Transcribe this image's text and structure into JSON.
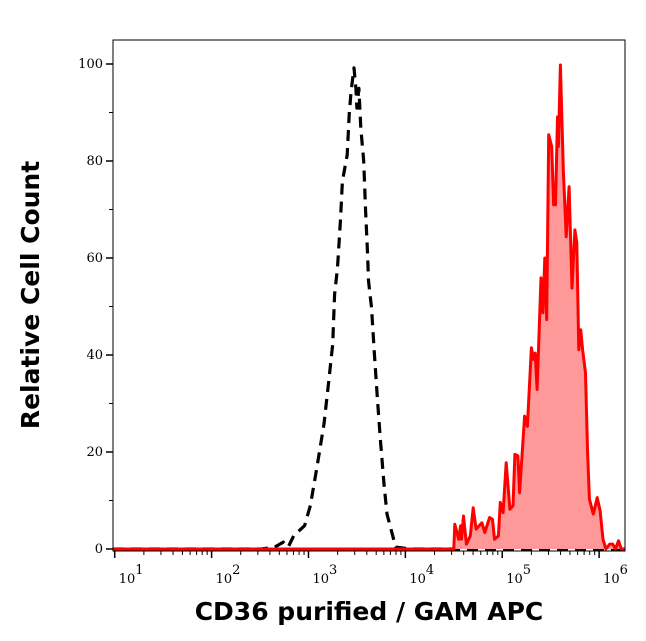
{
  "chart_data": {
    "type": "area",
    "title": "",
    "xlabel": "CD36 purified / GAM APC",
    "ylabel": "Relative Cell Count",
    "x_scale": "log",
    "xlim": [
      9.6,
      1850000
    ],
    "ylim": [
      0,
      105
    ],
    "grid": false,
    "legend": "none",
    "x_ticks": [
      {
        "base": "10",
        "exp": "1",
        "value": 10
      },
      {
        "base": "10",
        "exp": "2",
        "value": 100
      },
      {
        "base": "10",
        "exp": "3",
        "value": 1000
      },
      {
        "base": "10",
        "exp": "4",
        "value": 10000
      },
      {
        "base": "10",
        "exp": "5",
        "value": 100000
      },
      {
        "base": "10",
        "exp": "6",
        "value": 1000000
      }
    ],
    "y_ticks": [
      {
        "label": "0",
        "value": 0
      },
      {
        "label": "20",
        "value": 20
      },
      {
        "label": "40",
        "value": 40
      },
      {
        "label": "60",
        "value": 60
      },
      {
        "label": "80",
        "value": 80
      },
      {
        "label": "100",
        "value": 100
      }
    ],
    "series": [
      {
        "style": "dashed-line",
        "color": "#000000",
        "x": [
          9.6,
          324,
          447,
          550,
          617,
          708,
          912,
          1047,
          1230,
          1445,
          1622,
          1778,
          1862,
          1995,
          2138,
          2239,
          2512,
          2570,
          2630,
          2754,
          2951,
          3090,
          3162,
          3311,
          3467,
          3715,
          3890,
          4074,
          4169,
          4467,
          4786,
          5129,
          5495,
          6026,
          6457,
          7943,
          11220,
          1850000
        ],
        "y": [
          0,
          0,
          0.4,
          1.4,
          0.4,
          2.8,
          4.8,
          9.0,
          17.2,
          25.8,
          34.7,
          42.2,
          52.5,
          58.0,
          67.6,
          75.8,
          81.3,
          85.4,
          89.6,
          94.4,
          99.2,
          95.0,
          90.9,
          95.0,
          86.8,
          80.0,
          69.7,
          60.7,
          55.3,
          49.8,
          40.2,
          31.3,
          23.0,
          13.4,
          7.2,
          0.4,
          0,
          0
        ]
      },
      {
        "style": "filled-line",
        "color": "#ff0000",
        "fill": "#ff9999",
        "x": [
          9.6,
          22900,
          31600,
          32400,
          35500,
          37200,
          38000,
          39800,
          42700,
          46800,
          50100,
          53700,
          61700,
          66100,
          74100,
          79400,
          83200,
          91200,
          95500,
          102000,
          110000,
          120000,
          129000,
          135000,
          145000,
          151000,
          170000,
          182000,
          200000,
          209000,
          219000,
          229000,
          251000,
          263000,
          275000,
          288000,
          302000,
          324000,
          339000,
          355000,
          372000,
          380000,
          398000,
          427000,
          457000,
          490000,
          525000,
          562000,
          589000,
          617000,
          646000,
          676000,
          724000,
          759000,
          794000,
          871000,
          955000,
          1023000,
          1096000,
          1175000,
          1288000,
          1380000,
          1479000,
          1585000,
          1698000,
          1850000
        ],
        "y": [
          0,
          0,
          0,
          5.1,
          2.0,
          4.8,
          2.0,
          6.8,
          1.0,
          2.7,
          8.5,
          4.1,
          5.4,
          3.4,
          6.5,
          6.1,
          2.0,
          2.7,
          9.6,
          7.5,
          17.8,
          8.2,
          8.9,
          19.5,
          19.2,
          11.6,
          27.4,
          25.3,
          41.5,
          39.1,
          40.4,
          32.9,
          55.9,
          48.7,
          60.0,
          47.3,
          85.4,
          83.0,
          71.0,
          71.0,
          89.1,
          83.0,
          99.8,
          78.2,
          64.4,
          74.7,
          53.8,
          65.8,
          63.1,
          41.1,
          45.2,
          41.1,
          36.3,
          20.5,
          10.3,
          7.2,
          10.6,
          7.9,
          2.0,
          0,
          1.0,
          1.0,
          0,
          1.7,
          0,
          0
        ]
      }
    ]
  }
}
